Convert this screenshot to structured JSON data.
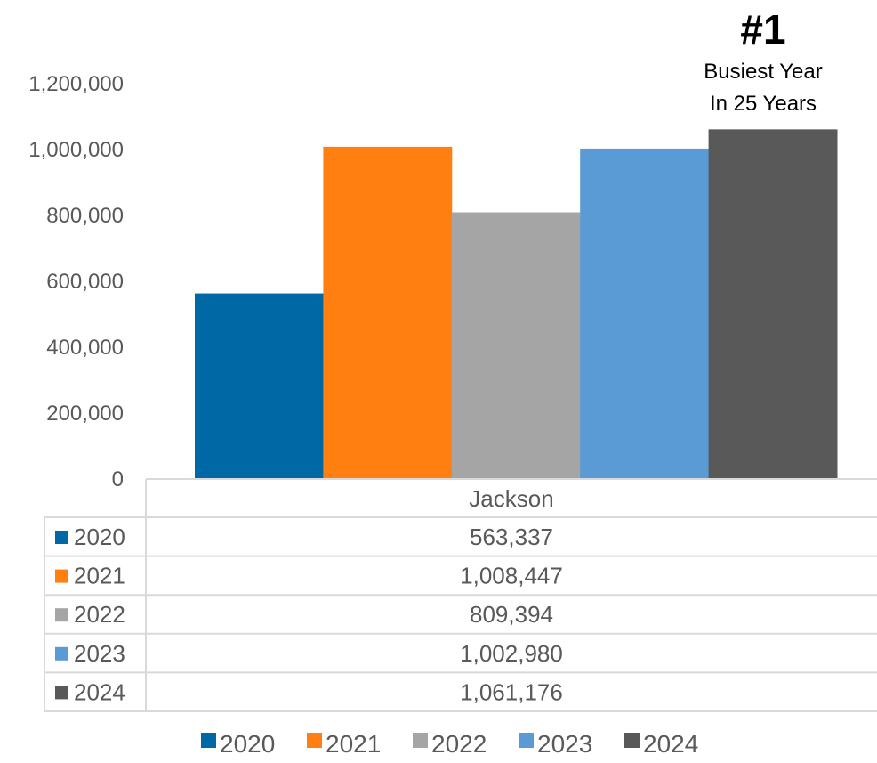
{
  "chart_data": {
    "type": "bar",
    "categories": [
      "Jackson"
    ],
    "series": [
      {
        "name": "2020",
        "values": [
          563337
        ],
        "color": "#0069A5",
        "label": "563,337"
      },
      {
        "name": "2021",
        "values": [
          1008447
        ],
        "color": "#FF7F11",
        "label": "1,008,447"
      },
      {
        "name": "2022",
        "values": [
          809394
        ],
        "color": "#A5A5A5",
        "label": "809,394"
      },
      {
        "name": "2023",
        "values": [
          1002980
        ],
        "color": "#5B9BD5",
        "label": "1,002,980"
      },
      {
        "name": "2024",
        "values": [
          1061176
        ],
        "color": "#595959",
        "label": "1,061,176"
      }
    ],
    "ylim": [
      0,
      1200000
    ],
    "yticks": [
      "0",
      "200,000",
      "400,000",
      "600,000",
      "800,000",
      "1,000,000",
      "1,200,000"
    ],
    "grid": false,
    "data_table": true,
    "legend_position": "bottom",
    "annotation": {
      "big": "#1",
      "line1": "Busiest Year",
      "line2": "In 25 Years"
    }
  }
}
